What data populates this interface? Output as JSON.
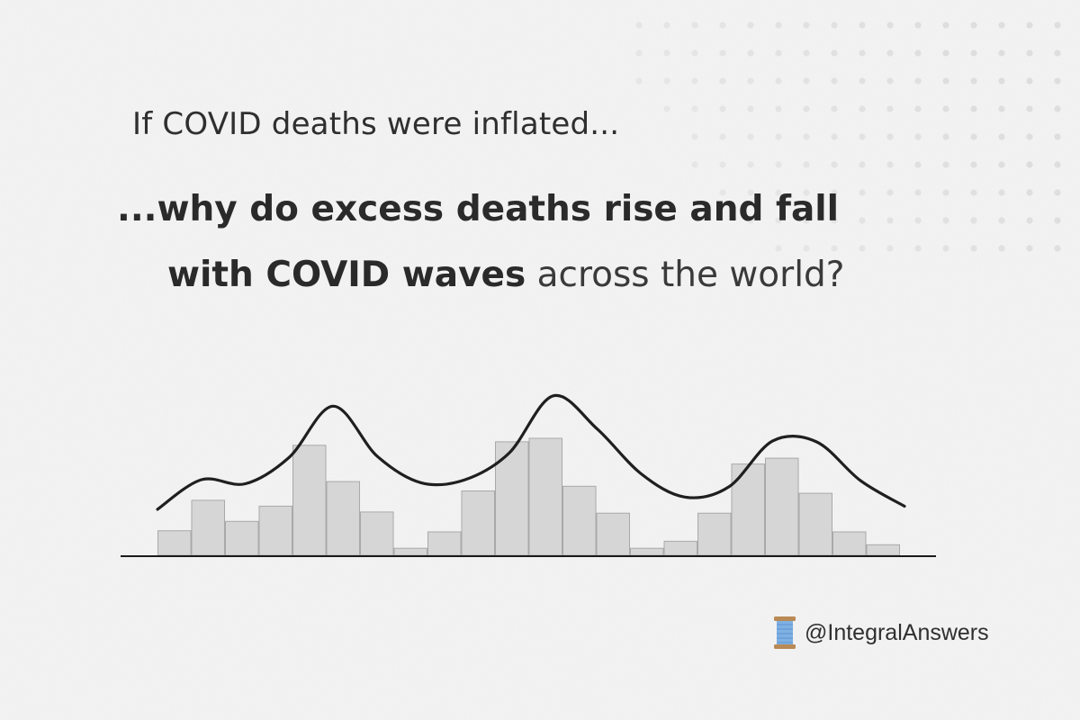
{
  "headline": {
    "line1": "If COVID deaths were inflated...",
    "line2": "...why do excess deaths rise and fall",
    "line3_bold": "with COVID waves",
    "line3_regular": " across the world?"
  },
  "credit": {
    "icon": "thread-spool-icon",
    "handle": "@IntegralAnswers"
  },
  "colors": {
    "background": "#f4f4f4",
    "bar_fill": "#d6d6d6",
    "bar_edge": "#a9a9a9",
    "curve": "#1f1f1f",
    "text": "#2b2b2b"
  },
  "chart_data": {
    "type": "bar",
    "title": "",
    "xlabel": "",
    "ylabel": "",
    "axes_labeled": false,
    "grid": false,
    "ylim": [
      0,
      100
    ],
    "values": [
      21,
      47,
      29,
      42,
      94,
      63,
      37,
      6,
      20,
      55,
      97,
      100,
      59,
      36,
      6,
      12,
      36,
      78,
      83,
      53,
      20,
      9
    ],
    "overlay_line": {
      "type": "line",
      "description_free": true,
      "y": [
        45,
        74,
        70,
        96,
        146,
        97,
        71,
        74,
        100,
        156,
        124,
        80,
        57,
        67,
        112,
        111,
        73,
        48
      ]
    }
  }
}
